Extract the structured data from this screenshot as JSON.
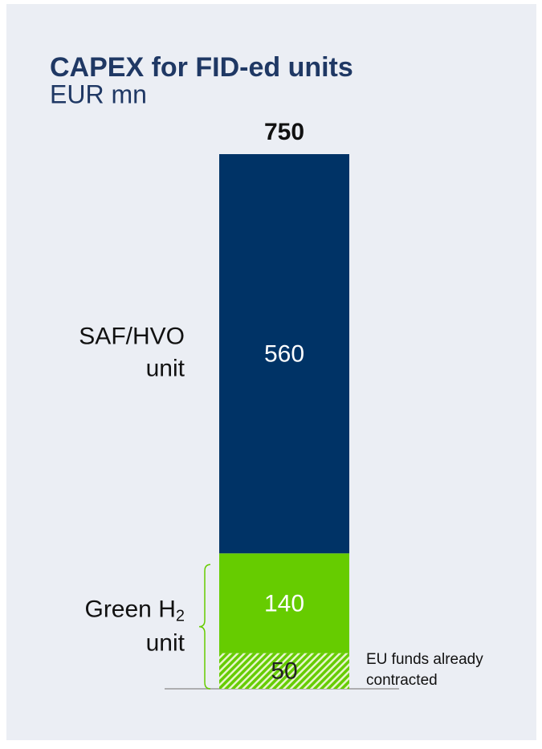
{
  "chart_data": {
    "type": "stacked_bar",
    "title": "CAPEX for FID-ed units",
    "subtitle": "EUR mn",
    "categories": [
      null
    ],
    "ylim": [
      0,
      750
    ],
    "total": 750,
    "series": [
      {
        "color": "#66cc00",
        "pattern": "hatch",
        "values": [
          50
        ]
      },
      {
        "color": "#66cc00",
        "values": [
          140
        ]
      },
      {
        "color": "#003366",
        "values": [
          560
        ]
      }
    ],
    "annotations": {
      "saf": [
        "SAF/HVO",
        "unit"
      ],
      "green": {
        "line1": "Green H",
        "sub": "2",
        "line2": "unit"
      },
      "eu": [
        "EU funds already",
        "contracted"
      ]
    }
  }
}
